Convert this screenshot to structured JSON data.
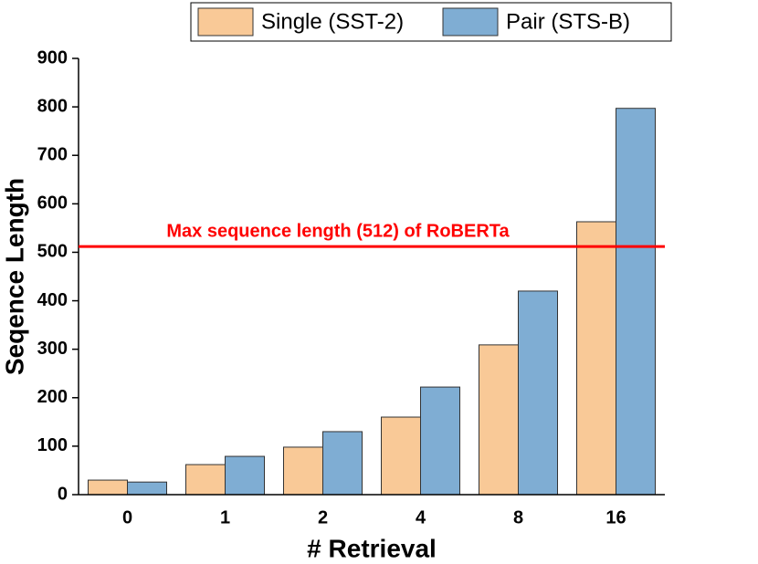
{
  "chart_data": {
    "type": "bar",
    "x_label": "# Retrieval",
    "y_label": "Seqence Length",
    "categories": [
      "0",
      "1",
      "2",
      "4",
      "8",
      "16"
    ],
    "series": [
      {
        "name": "Single (SST-2)",
        "color": "#f9c997",
        "values": [
          30,
          62,
          98,
          160,
          309,
          563
        ]
      },
      {
        "name": "Pair (STS-B)",
        "color": "#7fadd3",
        "values": [
          26,
          79,
          130,
          222,
          420,
          797
        ]
      }
    ],
    "ylim": [
      0,
      900
    ],
    "yticks": [
      0,
      100,
      200,
      300,
      400,
      500,
      600,
      700,
      800,
      900
    ],
    "reference_line": {
      "value": 512,
      "label": "Max sequence length (512) of RoBERTa",
      "color": "#ff0000"
    },
    "legend": "top"
  }
}
